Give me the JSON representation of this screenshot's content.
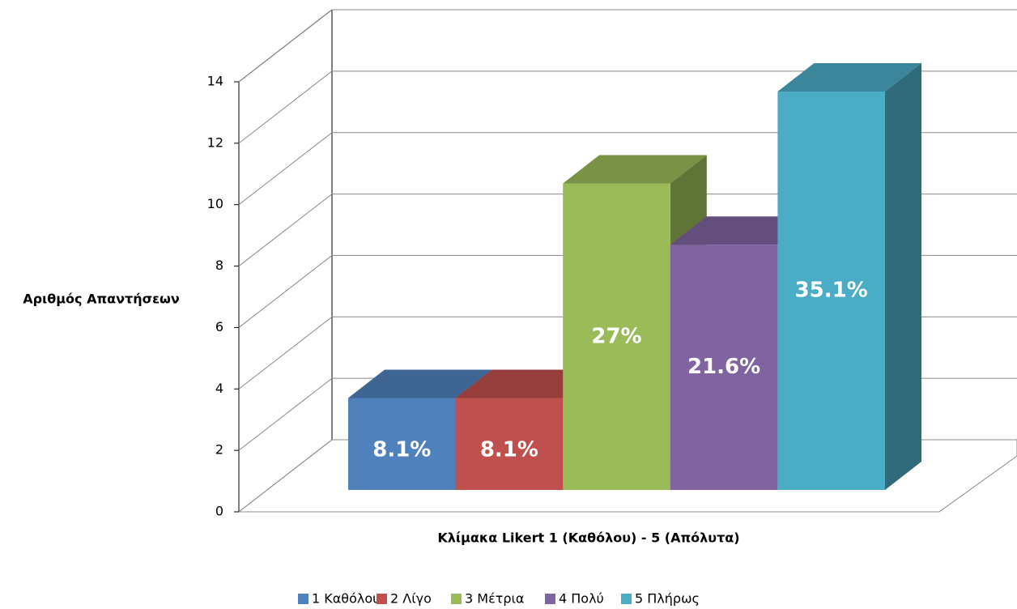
{
  "chart_data": {
    "type": "bar3d",
    "xlabel": "Κλίμακα Likert 1 (Καθόλου) - 5 (Απόλυτα)",
    "ylabel": "Αριθμός Απαντήσεων",
    "categories": [
      "1 Καθόλου",
      "2 Λίγο",
      "3 Μέτρια",
      "4 Πολύ",
      "5 Πλήρως"
    ],
    "values": [
      3,
      3,
      10,
      8,
      13
    ],
    "value_labels": [
      "8.1%",
      "8.1%",
      "27%",
      "21.6%",
      "35.1%"
    ],
    "colors": [
      "#4f81bd",
      "#c0504d",
      "#9bbb59",
      "#8064a2",
      "#4bacc6"
    ],
    "ylim": [
      0,
      14
    ],
    "yticks": [
      0,
      2,
      4,
      6,
      8,
      10,
      12,
      14
    ],
    "grid": true,
    "legend": "bottom"
  }
}
